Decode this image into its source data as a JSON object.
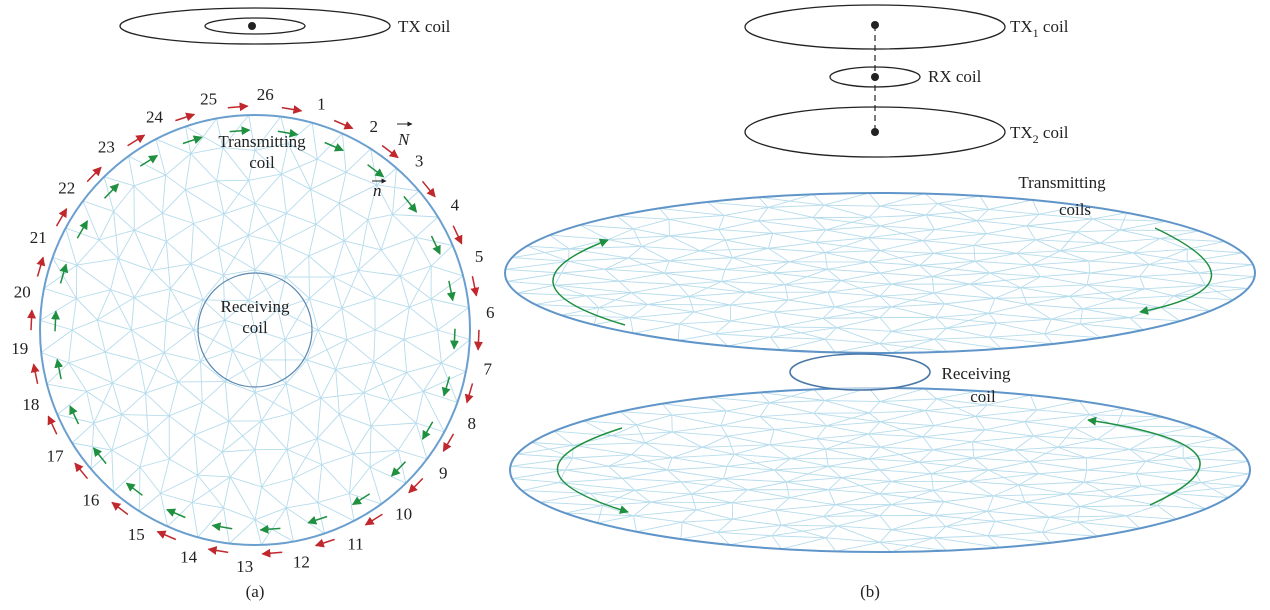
{
  "panel_a": {
    "tx_label": "TX coil",
    "numbers": [
      1,
      2,
      3,
      4,
      5,
      6,
      7,
      8,
      9,
      10,
      11,
      12,
      13,
      14,
      15,
      16,
      17,
      18,
      19,
      20,
      21,
      22,
      23,
      24,
      25,
      26
    ],
    "transmitting_label": [
      "Transmitting",
      "coil"
    ],
    "receiving_label": [
      "Receiving",
      "coil"
    ],
    "vector_N": "N",
    "vector_n": "n",
    "caption": "(a)"
  },
  "panel_b": {
    "tx1_label": {
      "main": "TX",
      "sub": "1",
      "rest": " coil"
    },
    "rx_label": "RX coil",
    "tx2_label": {
      "main": "TX",
      "sub": "2",
      "rest": " coil"
    },
    "transmitting_label": [
      "Transmitting",
      "coils"
    ],
    "receiving_label": [
      "Receiving",
      "coil"
    ],
    "caption": "(b)"
  }
}
